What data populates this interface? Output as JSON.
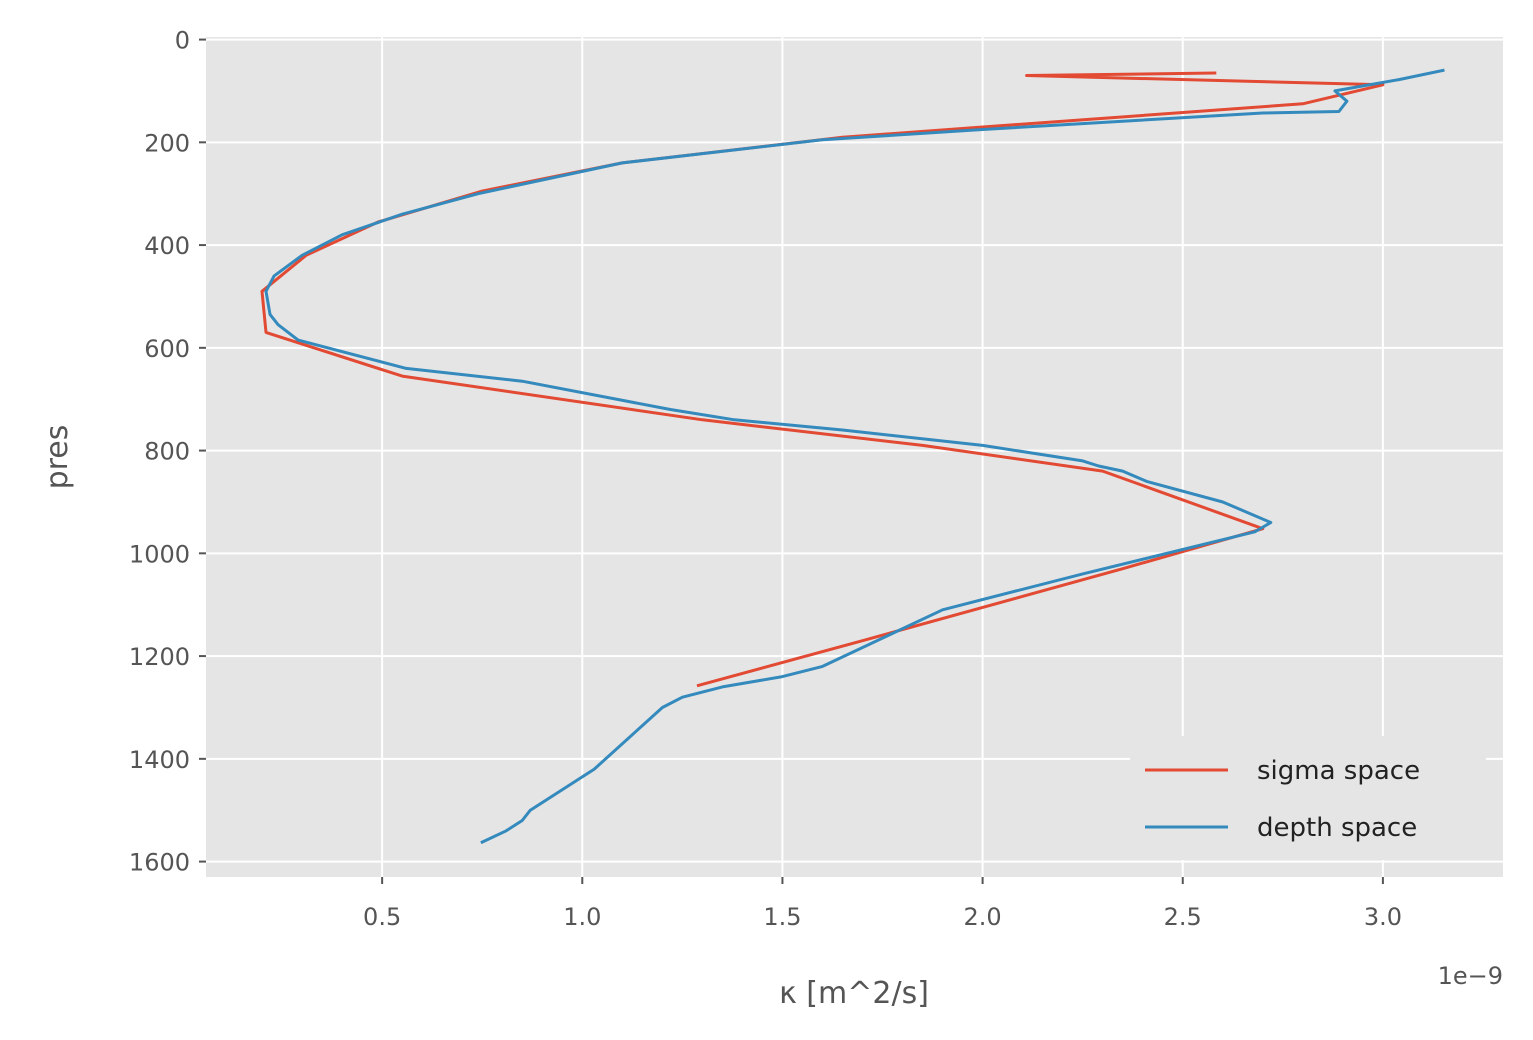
{
  "chart_data": {
    "type": "line",
    "title": "",
    "xlabel": "κ [m^2/s]",
    "ylabel": "pres",
    "x_offset_label": "1e−9",
    "x_scale_factor": 1e-09,
    "xlim": [
      0.06,
      3.3
    ],
    "ylim": [
      1630,
      -5
    ],
    "y_inverted": true,
    "x_ticks": [
      0.5,
      1.0,
      1.5,
      2.0,
      2.5,
      3.0
    ],
    "x_tick_labels": [
      "0.5",
      "1.0",
      "1.5",
      "2.0",
      "2.5",
      "3.0"
    ],
    "y_ticks": [
      0,
      200,
      400,
      600,
      800,
      1000,
      1200,
      1400,
      1600
    ],
    "y_tick_labels": [
      "0",
      "200",
      "400",
      "600",
      "800",
      "1000",
      "1200",
      "1400",
      "1600"
    ],
    "grid": true,
    "legend_position": "lower-right",
    "colors": {
      "background": "#e5e5e5",
      "grid": "#ffffff",
      "sigma": "#e24a33",
      "depth": "#348abd"
    },
    "series": [
      {
        "name": "sigma space",
        "color": "#e24a33",
        "x": [
          2.58,
          2.11,
          3.0,
          2.8,
          1.65,
          1.1,
          0.75,
          0.49,
          0.31,
          0.2,
          0.21,
          0.55,
          1.3,
          1.85,
          2.3,
          2.7,
          2.35,
          1.7,
          1.29
        ],
        "y": [
          65,
          70,
          88,
          125,
          190,
          240,
          295,
          355,
          420,
          490,
          570,
          655,
          740,
          790,
          840,
          952,
          1030,
          1170,
          1257
        ]
      },
      {
        "name": "depth space",
        "color": "#348abd",
        "x": [
          3.15,
          3.04,
          2.88,
          2.91,
          2.89,
          2.7,
          2.0,
          1.6,
          1.1,
          0.74,
          0.55,
          0.4,
          0.3,
          0.23,
          0.21,
          0.22,
          0.24,
          0.29,
          0.56,
          0.85,
          1.22,
          1.38,
          1.65,
          2.0,
          2.25,
          2.29,
          2.35,
          2.41,
          2.6,
          2.72,
          2.68,
          2.25,
          1.9,
          1.6,
          1.5,
          1.35,
          1.25,
          1.2,
          1.03,
          0.87,
          0.85,
          0.81,
          0.75
        ],
        "y": [
          60,
          78,
          100,
          120,
          140,
          143,
          175,
          195,
          240,
          300,
          340,
          380,
          420,
          460,
          490,
          535,
          555,
          585,
          640,
          665,
          720,
          740,
          760,
          790,
          820,
          830,
          840,
          860,
          900,
          940,
          958,
          1040,
          1110,
          1220,
          1240,
          1260,
          1280,
          1300,
          1420,
          1500,
          1520,
          1540,
          1562
        ]
      }
    ]
  }
}
